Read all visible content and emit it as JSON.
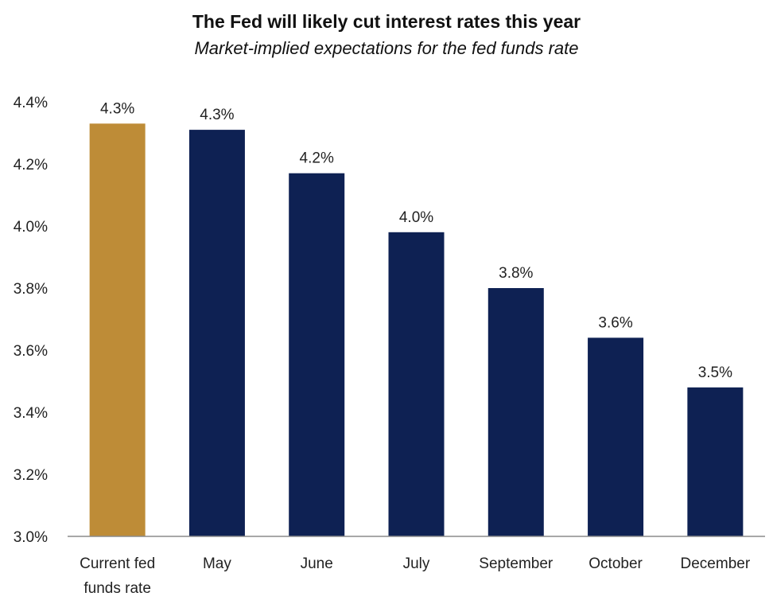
{
  "title": "The Fed will likely cut interest rates this year",
  "subtitle": "Market-implied expectations for the fed funds rate",
  "chart_data": {
    "type": "bar",
    "categories": [
      [
        "Current fed",
        "funds rate"
      ],
      [
        "May"
      ],
      [
        "June"
      ],
      [
        "July"
      ],
      [
        "September"
      ],
      [
        "October"
      ],
      [
        "December"
      ]
    ],
    "values": [
      4.33,
      4.31,
      4.17,
      3.98,
      3.8,
      3.64,
      3.48
    ],
    "data_labels": [
      "4.3%",
      "4.3%",
      "4.2%",
      "4.0%",
      "3.8%",
      "3.6%",
      "3.5%"
    ],
    "ylim": [
      3.0,
      4.4
    ],
    "yticks": [
      "3.0%",
      "3.2%",
      "3.4%",
      "3.6%",
      "3.8%",
      "4.0%",
      "4.2%",
      "4.4%"
    ],
    "colors": [
      "#BE8C37",
      "#0E2153",
      "#0E2153",
      "#0E2153",
      "#0E2153",
      "#0E2153",
      "#0E2153"
    ],
    "xlabel": "",
    "ylabel": "",
    "grid": false
  }
}
